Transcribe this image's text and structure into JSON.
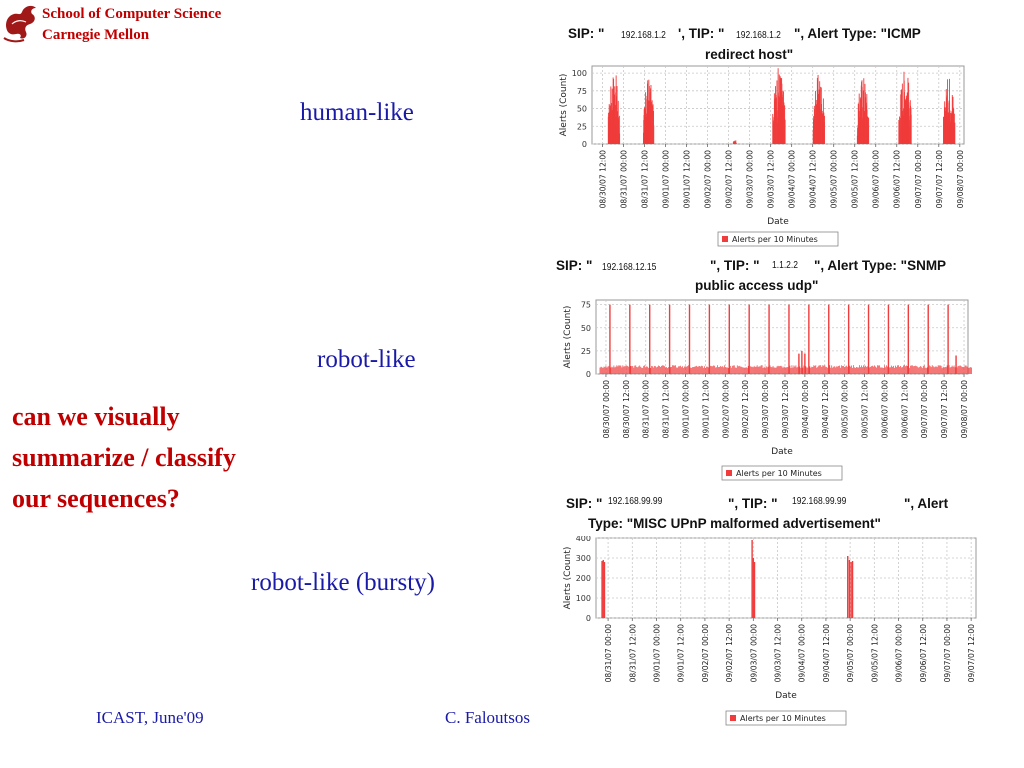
{
  "header": {
    "line1": "School of Computer Science",
    "line2": "Carnegie Mellon"
  },
  "labels": {
    "human": "human-like",
    "robot": "robot-like",
    "bursty": "robot-like (bursty)"
  },
  "question": {
    "line1": "can we visually",
    "line2": "summarize / classify",
    "line3": "our sequences?"
  },
  "footer": {
    "left": "ICAST, June'09",
    "center": "C. Faloutsos"
  },
  "colors": {
    "series": "#f03c3c",
    "grid": "#c8c8c8",
    "plot_border": "#9a9a9a",
    "title_red": "#c00000",
    "label_blue": "#1a1aa8"
  },
  "chart_data": [
    {
      "type": "bar",
      "title": {
        "p1": "SIP: \"",
        "ip1": "192.168.1.2",
        "p2": "', TIP: \"",
        "ip2": "192.168.1.2",
        "p3": "\", Alert Type: \"ICMP",
        "line2": "redirect host\""
      },
      "xlabel": "Date",
      "ylabel": "Alerts (Count)",
      "ylim": [
        0,
        110
      ],
      "yticks": [
        0,
        25,
        50,
        75,
        100
      ],
      "xticks": [
        "08/30/07 12:00",
        "08/31/07 00:00",
        "08/31/07 12:00",
        "09/01/07 00:00",
        "09/01/07 12:00",
        "09/02/07 00:00",
        "09/02/07 12:00",
        "09/03/07 00:00",
        "09/03/07 12:00",
        "09/04/07 00:00",
        "09/04/07 12:00",
        "09/05/07 00:00",
        "09/05/07 12:00",
        "09/06/07 00:00",
        "09/06/07 12:00",
        "09/07/07 00:00",
        "09/07/07 12:00",
        "09/08/07 00:00"
      ],
      "legend": "Alerts per 10 Minutes",
      "grid": true,
      "bursts": [
        {
          "center": 0.55,
          "width": 0.55,
          "peak": 105
        },
        {
          "center": 2.2,
          "width": 0.5,
          "peak": 95
        },
        {
          "center": 6.3,
          "width": 0.15,
          "peak": 8
        },
        {
          "center": 8.4,
          "width": 0.6,
          "peak": 110
        },
        {
          "center": 10.3,
          "width": 0.55,
          "peak": 100
        },
        {
          "center": 12.4,
          "width": 0.55,
          "peak": 100
        },
        {
          "center": 14.4,
          "width": 0.6,
          "peak": 110
        },
        {
          "center": 16.5,
          "width": 0.55,
          "peak": 100
        }
      ]
    },
    {
      "type": "bar",
      "title": {
        "p1": "SIP: \"",
        "ip1": "192.168.12.15",
        "p2": "\", TIP: \"",
        "ip2": "1.1.2.2",
        "p3": "\", Alert Type: \"SNMP",
        "line2": "public access udp\""
      },
      "xlabel": "Date",
      "ylabel": "Alerts (Count)",
      "ylim": [
        0,
        80
      ],
      "yticks": [
        0,
        25,
        50,
        75
      ],
      "xticks": [
        "08/30/07 00:00",
        "08/30/07 12:00",
        "08/31/07 00:00",
        "08/31/07 12:00",
        "09/01/07 00:00",
        "09/01/07 12:00",
        "09/02/07 00:00",
        "09/02/07 12:00",
        "09/03/07 00:00",
        "09/03/07 12:00",
        "09/04/07 00:00",
        "09/04/07 12:00",
        "09/05/07 00:00",
        "09/05/07 12:00",
        "09/06/07 00:00",
        "09/06/07 12:00",
        "09/07/07 00:00",
        "09/07/07 12:00",
        "09/08/07 00:00"
      ],
      "legend": "Alerts per 10 Minutes",
      "grid": true,
      "baseline": 8,
      "spikes": [
        {
          "x": 0.2,
          "value": 75
        },
        {
          "x": 1.2,
          "value": 75
        },
        {
          "x": 2.2,
          "value": 75
        },
        {
          "x": 3.2,
          "value": 75
        },
        {
          "x": 4.2,
          "value": 75
        },
        {
          "x": 5.2,
          "value": 75
        },
        {
          "x": 6.2,
          "value": 75
        },
        {
          "x": 7.2,
          "value": 75
        },
        {
          "x": 8.2,
          "value": 75
        },
        {
          "x": 9.2,
          "value": 75
        },
        {
          "x": 10.2,
          "value": 75
        },
        {
          "x": 11.2,
          "value": 75
        },
        {
          "x": 12.2,
          "value": 75
        },
        {
          "x": 13.2,
          "value": 75
        },
        {
          "x": 14.2,
          "value": 75
        },
        {
          "x": 15.2,
          "value": 75
        },
        {
          "x": 16.2,
          "value": 75
        },
        {
          "x": 17.2,
          "value": 75
        },
        {
          "x": 9.7,
          "value": 22
        },
        {
          "x": 9.85,
          "value": 25
        },
        {
          "x": 10.0,
          "value": 22
        },
        {
          "x": 17.6,
          "value": 20
        }
      ]
    },
    {
      "type": "bar",
      "title": {
        "p1": "SIP: \"",
        "ip1": "192.168.99.99",
        "p2": "\", TIP: \"",
        "ip2": "192.168.99.99",
        "p3": "\", Alert",
        "line2": "Type: \"MISC UPnP malformed advertisement\""
      },
      "xlabel": "Date",
      "ylabel": "Alerts (Count)",
      "ylim": [
        0,
        400
      ],
      "yticks": [
        0,
        100,
        200,
        300,
        400
      ],
      "xticks": [
        "08/31/07 00:00",
        "08/31/07 12:00",
        "09/01/07 00:00",
        "09/01/07 12:00",
        "09/02/07 00:00",
        "09/02/07 12:00",
        "09/03/07 00:00",
        "09/03/07 12:00",
        "09/04/07 00:00",
        "09/04/07 12:00",
        "09/05/07 00:00",
        "09/05/07 12:00",
        "09/06/07 00:00",
        "09/06/07 12:00",
        "09/07/07 00:00",
        "09/07/07 12:00"
      ],
      "legend": "Alerts per 10 Minutes",
      "grid": true,
      "spikes": [
        {
          "x": -0.25,
          "value": 285
        },
        {
          "x": -0.2,
          "value": 290
        },
        {
          "x": -0.15,
          "value": 280
        },
        {
          "x": 5.95,
          "value": 390
        },
        {
          "x": 6.0,
          "value": 300
        },
        {
          "x": 6.05,
          "value": 280
        },
        {
          "x": 9.9,
          "value": 310
        },
        {
          "x": 9.97,
          "value": 290
        },
        {
          "x": 10.04,
          "value": 280
        },
        {
          "x": 10.1,
          "value": 285
        },
        {
          "x": 15.65,
          "value": 270
        },
        {
          "x": 15.7,
          "value": 140
        }
      ]
    }
  ]
}
